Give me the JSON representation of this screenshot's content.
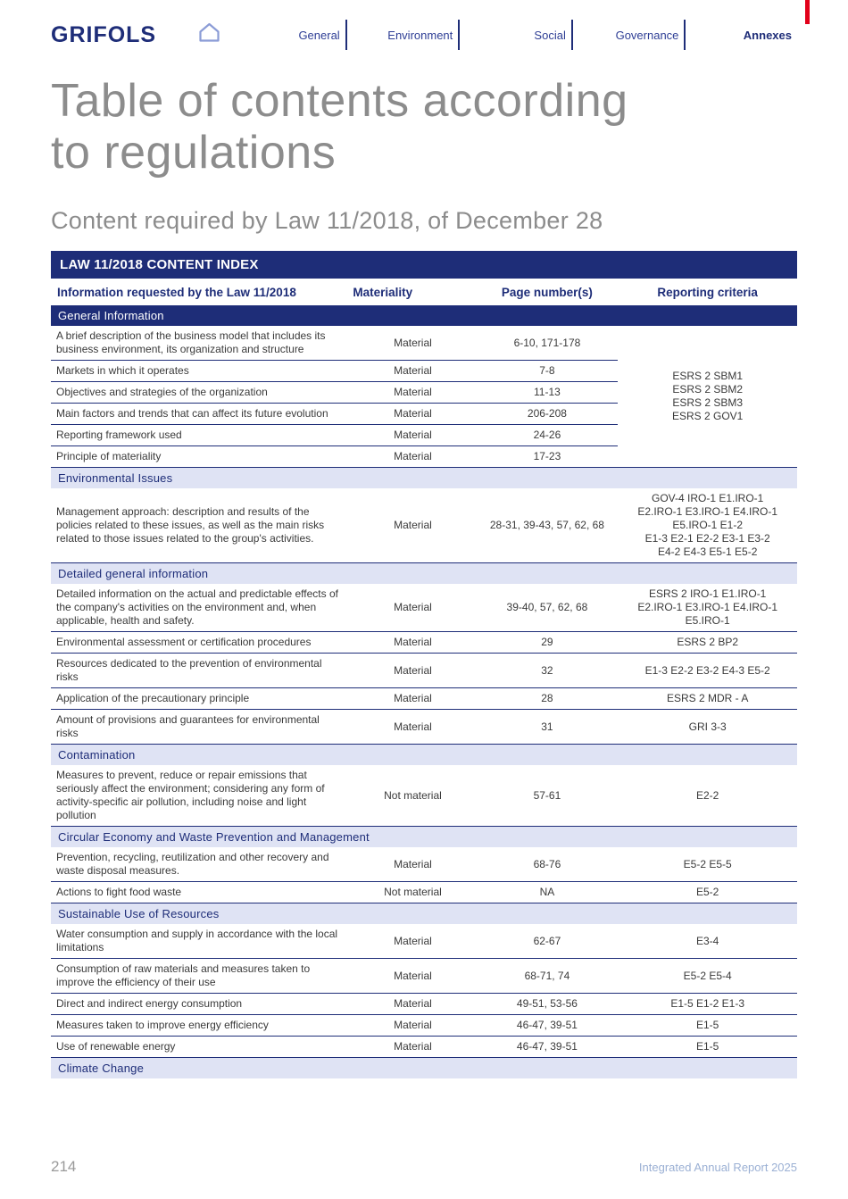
{
  "header": {
    "logo": "GRIFOLS",
    "nav": [
      {
        "label": "General",
        "active": false
      },
      {
        "label": "Environment",
        "active": false
      },
      {
        "label": "Social",
        "active": false
      },
      {
        "label": "Governance",
        "active": false
      },
      {
        "label": "Annexes",
        "active": true
      }
    ]
  },
  "page": {
    "title_line1": "Table of contents according",
    "title_line2": "to regulations",
    "subtitle": "Content required by Law 11/2018, of December 28"
  },
  "table": {
    "title": "LAW 11/2018 CONTENT INDEX",
    "columns": [
      "Information requested by the Law 11/2018",
      "Materiality",
      "Page number(s)",
      "Reporting criteria"
    ],
    "sections": [
      {
        "name": "General Information",
        "style": "dark",
        "shared_criteria": [
          "ESRS 2 SBM1",
          "ESRS 2 SBM2",
          "ESRS 2 SBM3",
          "ESRS 2 GOV1"
        ],
        "rows": [
          {
            "info": "A brief description of the business model that includes its business environment, its organization and structure",
            "materiality": "Material",
            "pages": "6-10, 171-178"
          },
          {
            "info": "Markets in which it operates",
            "materiality": "Material",
            "pages": "7-8"
          },
          {
            "info": "Objectives and strategies of the organization",
            "materiality": "Material",
            "pages": "11-13"
          },
          {
            "info": "Main factors and trends that can affect its future evolution",
            "materiality": "Material",
            "pages": "206-208"
          },
          {
            "info": "Reporting framework used",
            "materiality": "Material",
            "pages": "24-26"
          },
          {
            "info": "Principle of materiality",
            "materiality": "Material",
            "pages": "17-23"
          }
        ]
      },
      {
        "name": "Environmental Issues",
        "style": "light",
        "rows": [
          {
            "info": "Management approach: description and results of the policies related to these issues, as well as the main risks related to those issues related to the group's activities.",
            "materiality": "Material",
            "pages": "28-31, 39-43, 57, 62, 68",
            "criteria": [
              "GOV-4 IRO-1 E1.IRO-1",
              "E2.IRO-1 E3.IRO-1 E4.IRO-1",
              "E5.IRO-1 E1-2",
              "E1-3 E2-1 E2-2 E3-1 E3-2",
              "E4-2 E4-3 E5-1 E5-2"
            ]
          }
        ]
      },
      {
        "name": "Detailed general information",
        "style": "light",
        "rows": [
          {
            "info": "Detailed information on the actual and predictable effects of the company's activities on the environment and, when applicable, health and safety.",
            "materiality": "Material",
            "pages": "39-40, 57, 62, 68",
            "criteria": [
              "ESRS 2 IRO-1 E1.IRO-1",
              "E2.IRO-1 E3.IRO-1 E4.IRO-1",
              "E5.IRO-1"
            ]
          },
          {
            "info": "Environmental assessment or certification procedures",
            "materiality": "Material",
            "pages": "29",
            "criteria": [
              "ESRS 2 BP2"
            ]
          },
          {
            "info": "Resources dedicated to the prevention of environmental risks",
            "materiality": "Material",
            "pages": "32",
            "criteria": [
              "E1-3 E2-2 E3-2 E4-3 E5-2"
            ]
          },
          {
            "info": "Application of the precautionary principle",
            "materiality": "Material",
            "pages": "28",
            "criteria": [
              "ESRS 2 MDR - A"
            ]
          },
          {
            "info": "Amount of provisions and guarantees for environmental risks",
            "materiality": "Material",
            "pages": "31",
            "criteria": [
              "GRI 3-3"
            ]
          }
        ]
      },
      {
        "name": "Contamination",
        "style": "light",
        "rows": [
          {
            "info": "Measures to prevent, reduce or repair emissions that seriously affect the environment; considering any form of activity-specific air pollution, including noise and light pollution",
            "materiality": "Not material",
            "pages": "57-61",
            "criteria": [
              "E2-2"
            ]
          }
        ]
      },
      {
        "name": "Circular Economy and Waste Prevention and Management",
        "style": "light",
        "rows": [
          {
            "info": "Prevention, recycling, reutilization and other recovery and waste disposal measures.",
            "materiality": "Material",
            "pages": "68-76",
            "criteria": [
              "E5-2 E5-5"
            ]
          },
          {
            "info": "Actions to fight food waste",
            "materiality": "Not material",
            "pages": "NA",
            "criteria": [
              "E5-2"
            ]
          }
        ]
      },
      {
        "name": "Sustainable Use of Resources",
        "style": "light",
        "rows": [
          {
            "info": "Water consumption and supply in accordance with the local limitations",
            "materiality": "Material",
            "pages": "62-67",
            "criteria": [
              "E3-4"
            ]
          },
          {
            "info": "Consumption of raw materials and measures taken to improve the efficiency of their use",
            "materiality": "Material",
            "pages": "68-71, 74",
            "criteria": [
              "E5-2 E5-4"
            ]
          },
          {
            "info": "Direct and indirect energy consumption",
            "materiality": "Material",
            "pages": "49-51, 53-56",
            "criteria": [
              "E1-5 E1-2 E1-3"
            ]
          },
          {
            "info": "Measures taken to improve energy efficiency",
            "materiality": "Material",
            "pages": "46-47, 39-51",
            "criteria": [
              "E1-5"
            ]
          },
          {
            "info": "Use of renewable energy",
            "materiality": "Material",
            "pages": "46-47, 39-51",
            "criteria": [
              "E1-5"
            ]
          }
        ]
      },
      {
        "name": "Climate Change",
        "style": "light",
        "rows": []
      }
    ]
  },
  "footer": {
    "page_number": "214",
    "report_title": "Integrated Annual Report 2025"
  },
  "colors": {
    "navy": "#1e2d78",
    "light_section_bg": "#dfe3f4",
    "red_accent": "#e2001a",
    "title_gray": "#8c8c8c",
    "footer_blue": "#9bb0d4"
  }
}
